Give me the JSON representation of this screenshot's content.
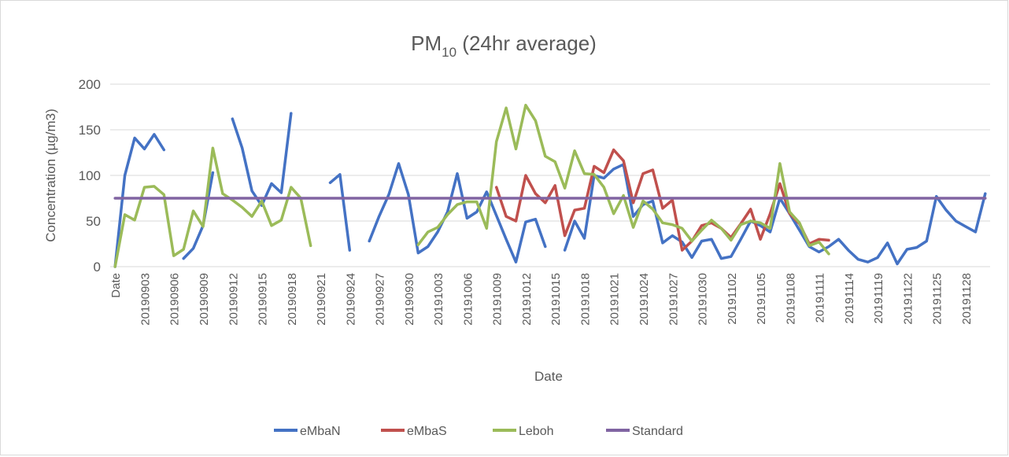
{
  "chart_data": {
    "type": "line",
    "title": "PM",
    "title_subscript": "10",
    "title_suffix": " (24hr average)",
    "x_label": "Date",
    "y_label": "Concentration (µg/m3)",
    "categories": [
      "Date",
      null,
      null,
      "20190903",
      null,
      null,
      "20190906",
      null,
      null,
      "20190909",
      null,
      null,
      "20190912",
      null,
      null,
      "20190915",
      null,
      null,
      "20190918",
      null,
      null,
      "20190921",
      null,
      null,
      "20190924",
      null,
      null,
      "20190927",
      null,
      null,
      "20190930",
      null,
      null,
      "20191003",
      null,
      null,
      "20191006",
      null,
      null,
      "20191009",
      null,
      null,
      "20191012",
      null,
      null,
      "20191015",
      null,
      null,
      "20191018",
      null,
      null,
      "20191021",
      null,
      null,
      "20191024",
      null,
      null,
      "20191027",
      null,
      null,
      "20191030",
      null,
      null,
      "20191102",
      null,
      null,
      "20191105",
      null,
      null,
      "20191108",
      null,
      null,
      "20191111",
      null,
      null,
      "20191114",
      null,
      null,
      "20191119",
      null,
      null,
      "20191122",
      null,
      null,
      "20191125",
      null,
      null,
      "20191128",
      null,
      null
    ],
    "series": [
      {
        "name": "eMbaN",
        "color": "#4472c4",
        "values": [
          0,
          100,
          141,
          129,
          145,
          128,
          null,
          9,
          20,
          45,
          103,
          null,
          162,
          130,
          83,
          67,
          91,
          81,
          168,
          null,
          null,
          null,
          92,
          101,
          18,
          null,
          28,
          55,
          79,
          113,
          79,
          15,
          22,
          38,
          60,
          102,
          53,
          60,
          82,
          56,
          30,
          5,
          49,
          52,
          22,
          null,
          18,
          50,
          31,
          100,
          97,
          107,
          112,
          55,
          68,
          72,
          26,
          34,
          27,
          10,
          28,
          30,
          9,
          11,
          30,
          50,
          45,
          38,
          75,
          58,
          40,
          22,
          16,
          22,
          30,
          18,
          8,
          5,
          10,
          26,
          3,
          19,
          21,
          28,
          77,
          62,
          50,
          44,
          38,
          80
        ]
      },
      {
        "name": "eMbaS",
        "color": "#c0504d",
        "values": [
          null,
          null,
          null,
          null,
          null,
          null,
          null,
          null,
          null,
          null,
          null,
          null,
          null,
          null,
          null,
          null,
          null,
          null,
          null,
          null,
          null,
          null,
          null,
          null,
          null,
          null,
          null,
          null,
          null,
          null,
          null,
          null,
          null,
          null,
          null,
          null,
          null,
          null,
          null,
          87,
          55,
          50,
          100,
          80,
          70,
          89,
          34,
          62,
          64,
          110,
          103,
          128,
          116,
          70,
          102,
          106,
          64,
          73,
          18,
          28,
          45,
          48,
          42,
          32,
          47,
          63,
          30,
          58,
          91,
          58,
          47,
          25,
          30,
          29,
          null,
          null,
          null,
          null,
          null,
          null,
          null,
          null,
          null,
          null,
          null,
          null,
          null,
          null,
          null,
          null
        ]
      },
      {
        "name": "Leboh",
        "color": "#9bbb59",
        "values": [
          0,
          57,
          51,
          87,
          88,
          79,
          12,
          19,
          61,
          44,
          130,
          80,
          73,
          65,
          55,
          72,
          45,
          51,
          87,
          75,
          23,
          null,
          null,
          null,
          null,
          null,
          null,
          null,
          null,
          null,
          null,
          24,
          38,
          43,
          57,
          68,
          71,
          71,
          42,
          137,
          174,
          129,
          177,
          160,
          121,
          115,
          86,
          127,
          102,
          101,
          87,
          58,
          78,
          43,
          72,
          63,
          48,
          46,
          42,
          28,
          40,
          51,
          42,
          29,
          46,
          50,
          48,
          42,
          113,
          60,
          48,
          23,
          27,
          14,
          null,
          null,
          null,
          null,
          null,
          null,
          null,
          null,
          null,
          null,
          null,
          null,
          null,
          null,
          null,
          null
        ]
      },
      {
        "name": "Standard",
        "color": "#8064a2",
        "values": [
          75,
          75,
          75,
          75,
          75,
          75,
          75,
          75,
          75,
          75,
          75,
          75,
          75,
          75,
          75,
          75,
          75,
          75,
          75,
          75,
          75,
          75,
          75,
          75,
          75,
          75,
          75,
          75,
          75,
          75,
          75,
          75,
          75,
          75,
          75,
          75,
          75,
          75,
          75,
          75,
          75,
          75,
          75,
          75,
          75,
          75,
          75,
          75,
          75,
          75,
          75,
          75,
          75,
          75,
          75,
          75,
          75,
          75,
          75,
          75,
          75,
          75,
          75,
          75,
          75,
          75,
          75,
          75,
          75,
          75,
          75,
          75,
          75,
          75,
          75,
          75,
          75,
          75,
          75,
          75,
          75,
          75,
          75,
          75,
          75,
          75,
          75,
          75,
          75,
          75
        ]
      }
    ],
    "ylim": [
      0,
      200
    ],
    "yticks": [
      0,
      50,
      100,
      150,
      200
    ],
    "grid": true,
    "legend": "bottom"
  }
}
